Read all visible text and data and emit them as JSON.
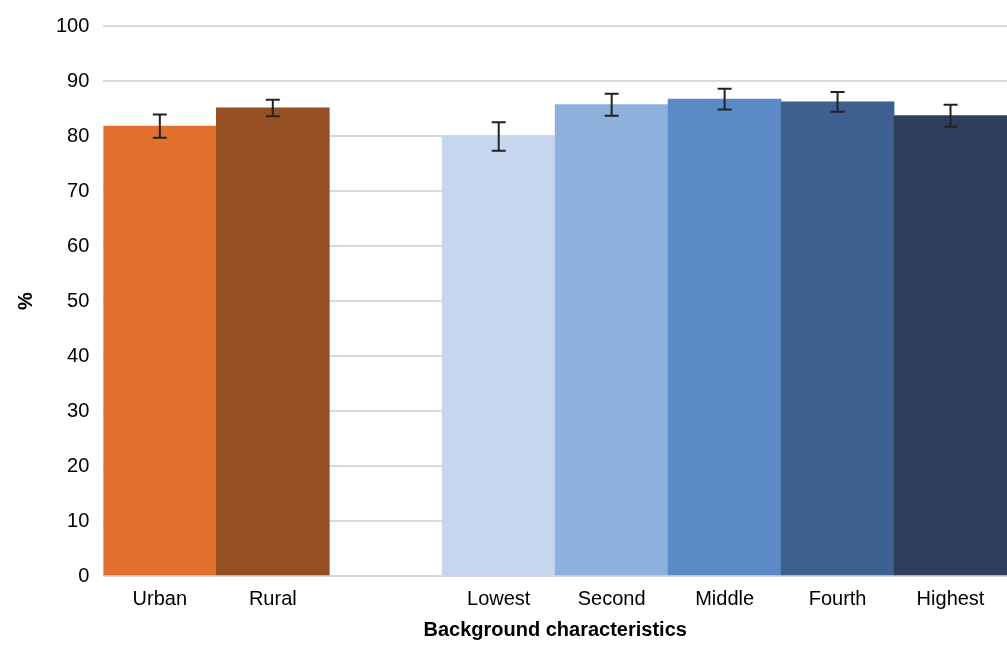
{
  "chart_data": {
    "type": "bar",
    "xlabel": "Background characteristics",
    "ylabel": "%",
    "categories": [
      "Urban",
      "Rural",
      null,
      "Lowest",
      "Second",
      "Middle",
      "Fourth",
      "Highest"
    ],
    "values": [
      81.8,
      85.1,
      null,
      79.9,
      85.7,
      86.7,
      86.2,
      83.7
    ],
    "colors": [
      "#e0702c",
      "#964f23",
      "#ffffff",
      "#c5d6ee",
      "#8eb0dc",
      "#5b8ac6",
      "#3d6090",
      "#2e3f5e"
    ],
    "errors": [
      2.1,
      1.5,
      null,
      2.6,
      2.0,
      1.9,
      1.8,
      2.0
    ],
    "ylim": [
      0,
      100
    ],
    "yticks": [
      0,
      10,
      20,
      30,
      40,
      50,
      60,
      70,
      80,
      90,
      100
    ],
    "grid": "y",
    "legend": false
  }
}
